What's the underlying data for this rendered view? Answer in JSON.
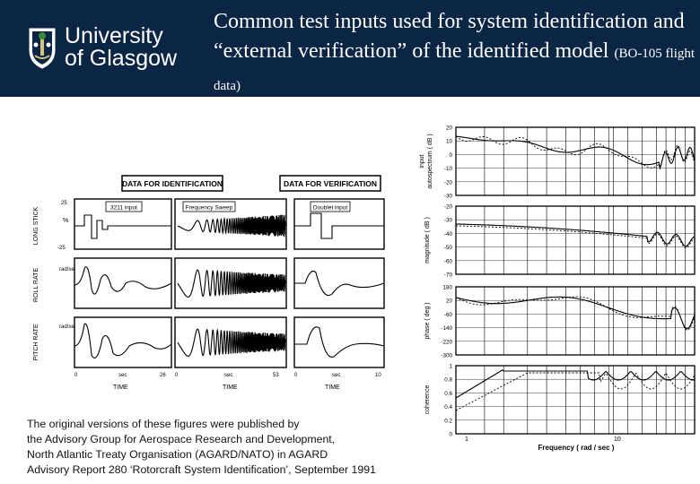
{
  "header": {
    "logo": {
      "line1": "University",
      "line2": "of Glasgow",
      "icon": "university-crest-icon"
    },
    "title_main": "Common test inputs used for system identification and “external verification” of the identified model",
    "title_suffix": "(BO-105 flight data)"
  },
  "left_figure": {
    "box_identification": "DATA FOR IDENTIFICATION",
    "box_verification": "DATA FOR VERIFICATION",
    "input_3211": "3211 input",
    "input_sweep": "Frequency Sweep",
    "input_doublet": "Doublet input",
    "row_long_stick": "LONG STICK",
    "row_roll_rate": "ROLL RATE",
    "row_pitch_rate": "PITCH RATE",
    "unit_percent": "%",
    "unit_rad_sec": "rad/sec",
    "axis_time": "TIME",
    "axis_sec": "sec",
    "x_end_1": "26",
    "x_end_2": "53",
    "x_end_3": "10",
    "x_zero": "0",
    "y_top": "25",
    "y_bottom": "-25"
  },
  "right_figure": {
    "panels": [
      {
        "label_lines": [
          "input",
          "autospectrum ( dB )"
        ],
        "ticks": [
          "20",
          "10",
          "0",
          "-10",
          "-20",
          "-30"
        ]
      },
      {
        "label_lines": [
          "magnitude ( dB )"
        ],
        "ticks": [
          "-20",
          "-30",
          "-40",
          "-50",
          "-60",
          "-70"
        ]
      },
      {
        "label_lines": [
          "phase ( deg )"
        ],
        "ticks": [
          "180",
          "20",
          "-60",
          "-140",
          "-220",
          "-300"
        ]
      },
      {
        "label_lines": [
          "coherence"
        ],
        "ticks": [
          "1",
          "0.8",
          "0.6",
          "0.4",
          "0.2",
          "0"
        ]
      }
    ],
    "x_tick_1": "1",
    "x_tick_10": "10",
    "x_label": "Frequency ( rad / sec )"
  },
  "source_note": [
    "The original versions of these figures were published by",
    "the Advisory Group for Aerospace Research and Development,",
    "North Atlantic Treaty Organisation (AGARD/NATO) in AGARD",
    "Advisory Report 280 ‘Rotorcraft System Identification’, September  1991"
  ]
}
